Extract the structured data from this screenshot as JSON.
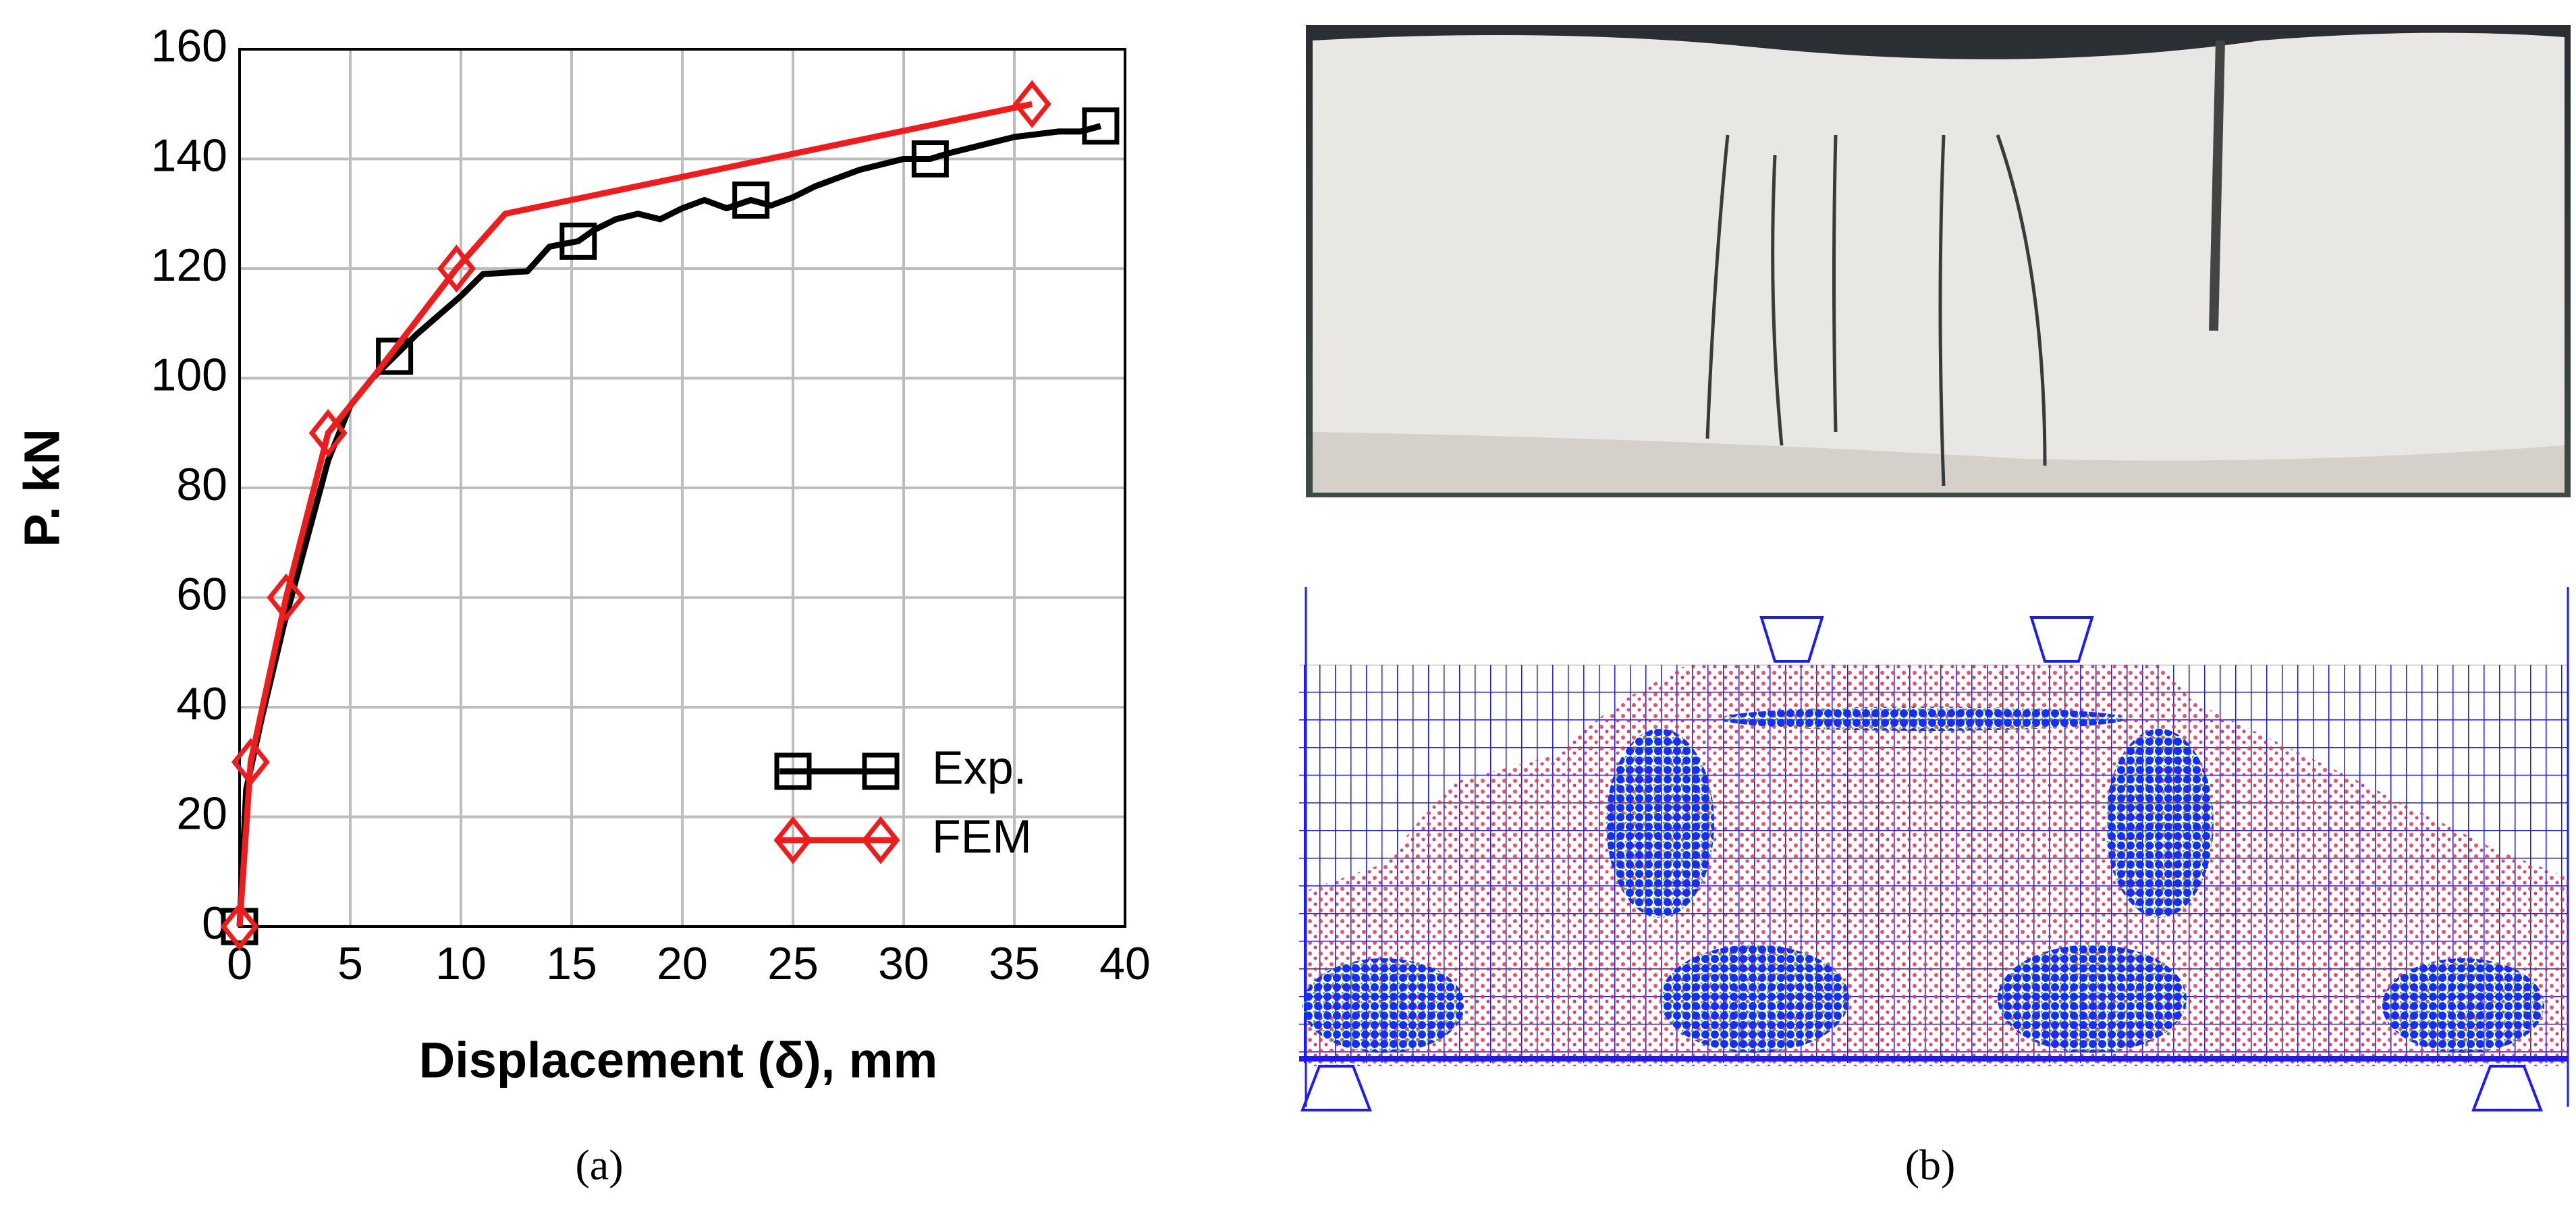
{
  "chart_data": {
    "type": "line",
    "x_label": "Displacement (δ), mm",
    "y_label": "P. kN",
    "xlim": [
      0,
      40
    ],
    "ylim": [
      0,
      160
    ],
    "xticks": [
      0,
      5,
      10,
      15,
      20,
      25,
      30,
      35,
      40
    ],
    "yticks": [
      0,
      20,
      40,
      60,
      80,
      100,
      120,
      140,
      160
    ],
    "grid": true,
    "legend": "lower right",
    "series": [
      {
        "name": "Exp.",
        "color": "#000000",
        "marker": "square",
        "x": [
          0,
          0.3,
          1,
          2,
          3,
          4,
          5,
          6,
          7,
          8,
          10,
          11,
          13,
          14,
          15.3,
          16,
          17,
          18,
          19,
          20,
          21,
          22,
          23.1,
          24,
          25,
          26,
          27,
          28,
          29,
          30,
          31.2,
          32,
          33,
          34,
          35,
          36,
          37,
          38,
          38.9
        ],
        "values": [
          0,
          25,
          38,
          55,
          70,
          85,
          95,
          100,
          104,
          108,
          115,
          119,
          119.5,
          124,
          125,
          127,
          129,
          130,
          129,
          131,
          132.5,
          131,
          132.5,
          131.5,
          133,
          135,
          136.5,
          138,
          139,
          140,
          140,
          141,
          142,
          143,
          144,
          144.5,
          145,
          145,
          146
        ],
        "markers": {
          "x": [
            0,
            7,
            15.3,
            23.1,
            31.2,
            38.9
          ],
          "values": [
            0,
            104,
            125,
            132.5,
            140,
            146
          ]
        }
      },
      {
        "name": "FEM",
        "color": "#ee1c1c",
        "marker": "diamond",
        "x": [
          0,
          0.5,
          2.1,
          4,
          6,
          9.8,
          12,
          35.8
        ],
        "values": [
          0,
          30,
          60,
          90,
          100,
          120,
          130,
          150
        ],
        "markers": {
          "x": [
            0,
            0.5,
            2.1,
            4,
            9.8,
            35.8
          ],
          "values": [
            0,
            30,
            60,
            90,
            120,
            150
          ]
        }
      }
    ]
  },
  "panels": {
    "a_label": "(a)",
    "b_label": "(b)"
  }
}
